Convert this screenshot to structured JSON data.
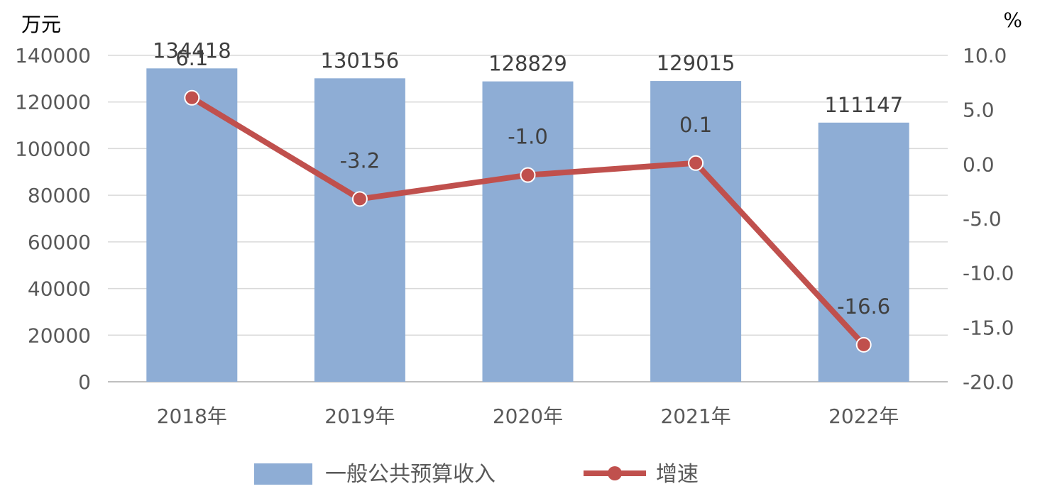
{
  "chart_data": {
    "type": "bar+line",
    "title": "",
    "categories": [
      "2018年",
      "2019年",
      "2020年",
      "2021年",
      "2022年"
    ],
    "series": [
      {
        "name": "一般公共预算收入",
        "type": "bar",
        "axis": "left",
        "values": [
          134418,
          130156,
          128829,
          129015,
          111147
        ],
        "labels": [
          "134418",
          "130156",
          "128829",
          "129015",
          "111147"
        ],
        "color": "#8EADD5"
      },
      {
        "name": "增速",
        "type": "line",
        "axis": "right",
        "values": [
          6.1,
          -3.2,
          -1.0,
          0.1,
          -16.6
        ],
        "labels": [
          "6.1",
          "-3.2",
          "-1.0",
          "0.1",
          "-16.6"
        ],
        "color": "#C0504D"
      }
    ],
    "y_left": {
      "unit": "万元",
      "range": [
        0,
        140000
      ],
      "ticks": [
        "0",
        "20000",
        "40000",
        "60000",
        "80000",
        "100000",
        "120000",
        "140000"
      ]
    },
    "y_right": {
      "unit": "%",
      "range": [
        -20,
        10
      ],
      "ticks": [
        "-20.0",
        "-15.0",
        "-10.0",
        "-5.0",
        "0.0",
        "5.0",
        "10.0"
      ]
    },
    "grid": true,
    "legend": "bottom"
  }
}
